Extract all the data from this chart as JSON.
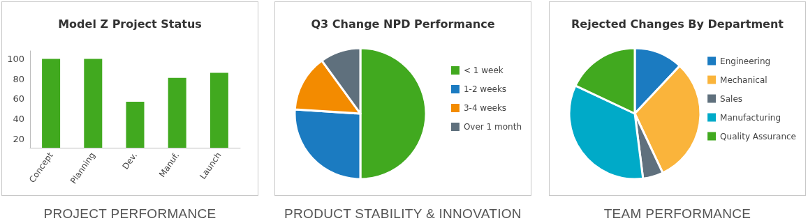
{
  "chart_data": [
    {
      "type": "bar",
      "title": "Model Z Project Status",
      "annotations": [
        "PROJECT PERFORMANCE"
      ],
      "categories": [
        "Concept",
        "Planning",
        "Dev.",
        "Manuf.",
        "Launch"
      ],
      "values": [
        100,
        100,
        57,
        81,
        86
      ],
      "color": "#41a91f",
      "ylim": [
        11,
        108
      ],
      "yticks": [
        20,
        40,
        60,
        80,
        100
      ],
      "grid": false,
      "legend": false
    },
    {
      "type": "pie",
      "title": "Q3 Change NPD Performance",
      "annotations": [
        "PRODUCT STABILITY & INNOVATION"
      ],
      "categories": [
        "< 1 week",
        "1-2 weeks",
        "3-4 weeks",
        "Over 1 month"
      ],
      "values": [
        50,
        26,
        14,
        10
      ],
      "colors": [
        "#41a91f",
        "#1b7bc1",
        "#f38b00",
        "#5f707d"
      ],
      "legend": "right"
    },
    {
      "type": "pie",
      "title": "Rejected Changes By Department",
      "annotations": [
        "TEAM PERFORMANCE"
      ],
      "categories": [
        "Engineering",
        "Mechanical",
        "Sales",
        "Manufacturing",
        "Quality Assurance"
      ],
      "values": [
        12,
        31,
        5,
        34,
        18
      ],
      "colors": [
        "#1b7bc1",
        "#fab43b",
        "#5f707d",
        "#00aac8",
        "#41a91f"
      ],
      "legend": "right"
    }
  ]
}
